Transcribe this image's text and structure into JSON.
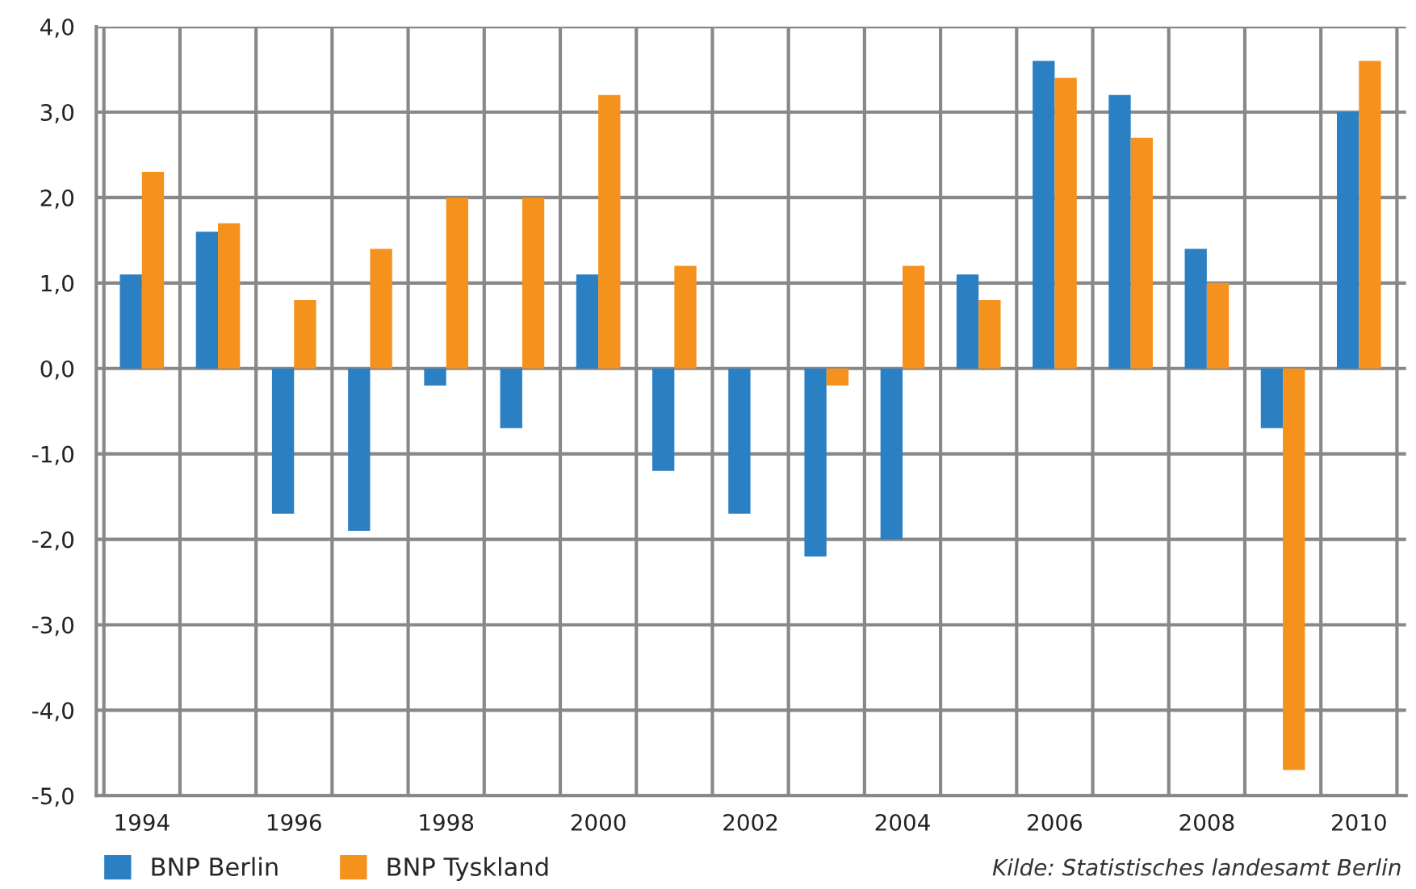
{
  "chart_data": {
    "type": "bar",
    "categories": [
      "1994",
      null,
      "1996",
      null,
      "1998",
      null,
      "2000",
      null,
      "2002",
      null,
      "2004",
      null,
      "2006",
      null,
      "2008",
      null,
      "2010"
    ],
    "series": [
      {
        "name": "BNP Berlin",
        "color": "#2b7fc3",
        "values": [
          1.1,
          1.6,
          -1.7,
          -1.9,
          -0.2,
          -0.7,
          1.1,
          -1.2,
          -1.7,
          -2.2,
          -2.0,
          1.1,
          3.6,
          3.2,
          1.4,
          -0.7,
          3.0
        ]
      },
      {
        "name": "BNP Tyskland",
        "color": "#f5921e",
        "values": [
          2.3,
          1.7,
          0.8,
          1.4,
          2.0,
          2.0,
          3.2,
          1.2,
          null,
          -0.2,
          1.2,
          0.8,
          3.4,
          2.7,
          1.0,
          -4.7,
          3.6
        ]
      }
    ],
    "ylim": [
      -5,
      4
    ],
    "yticks": [
      {
        "value": -5,
        "label": "-5,0"
      },
      {
        "value": -4,
        "label": "-4,0"
      },
      {
        "value": -3,
        "label": "-3,0"
      },
      {
        "value": -2,
        "label": "-2,0"
      },
      {
        "value": -1,
        "label": "-1,0"
      },
      {
        "value": 0,
        "label": "0,0"
      },
      {
        "value": 1,
        "label": "1,0"
      },
      {
        "value": 2,
        "label": "2,0"
      },
      {
        "value": 3,
        "label": "3,0"
      },
      {
        "value": 4,
        "label": "4,0"
      }
    ],
    "grid": true,
    "legend": "bottom left",
    "annotations": [
      "Kilde: Statistisches landesamt Berlin"
    ]
  }
}
